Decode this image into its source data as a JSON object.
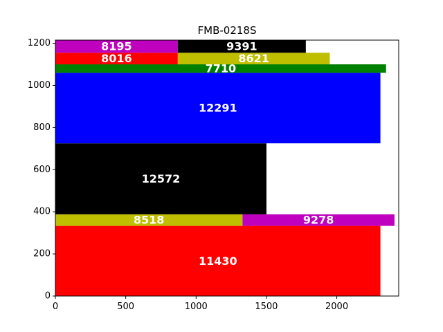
{
  "chart_data": {
    "type": "bar",
    "title": "FMB-0218S",
    "xlabel": "",
    "ylabel": "",
    "xlim": [
      0,
      2440
    ],
    "ylim": [
      0,
      1215
    ],
    "x_ticks": [
      0,
      500,
      1000,
      1500,
      2000
    ],
    "y_ticks": [
      0,
      200,
      400,
      600,
      800,
      1000,
      1200
    ],
    "grid": false,
    "pieces": [
      {
        "label": "11430",
        "x0": 0,
        "x1": 2310,
        "y0": 0,
        "y1": 333,
        "color": "#ff0000"
      },
      {
        "label": "8518",
        "x0": 0,
        "x1": 1330,
        "y0": 333,
        "y1": 388,
        "color": "#bfbf00"
      },
      {
        "label": "9278",
        "x0": 1330,
        "x1": 2410,
        "y0": 333,
        "y1": 388,
        "color": "#bf00bf"
      },
      {
        "label": "12572",
        "x0": 0,
        "x1": 1500,
        "y0": 388,
        "y1": 725,
        "color": "#000000"
      },
      {
        "label": "12291",
        "x0": 0,
        "x1": 2310,
        "y0": 725,
        "y1": 1060,
        "color": "#0000ff"
      },
      {
        "label": "7710",
        "x0": 0,
        "x1": 2350,
        "y0": 1060,
        "y1": 1100,
        "color": "#008000"
      },
      {
        "label": "8016",
        "x0": 0,
        "x1": 870,
        "y0": 1100,
        "y1": 1155,
        "color": "#ff0000"
      },
      {
        "label": "8621",
        "x0": 870,
        "x1": 1950,
        "y0": 1100,
        "y1": 1155,
        "color": "#bfbf00"
      },
      {
        "label": "8195",
        "x0": 0,
        "x1": 870,
        "y0": 1155,
        "y1": 1215,
        "color": "#bf00bf"
      },
      {
        "label": "9391",
        "x0": 870,
        "x1": 1780,
        "y0": 1155,
        "y1": 1215,
        "color": "#000000"
      }
    ]
  }
}
